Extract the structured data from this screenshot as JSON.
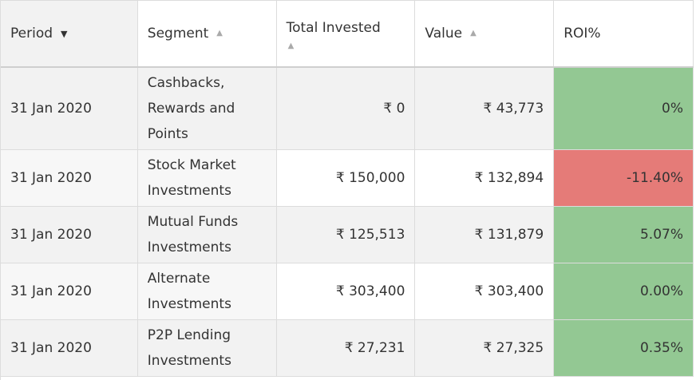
{
  "colors": {
    "positive": "#93c893",
    "negative": "#e57b78",
    "header_sorted_bg": "#f2f2f2"
  },
  "header": {
    "period": "Period",
    "segment": "Segment",
    "total_invested": "Total Invested",
    "value": "Value",
    "roi": "ROI%",
    "icons": {
      "period_sort": "triangle-down",
      "segment_sort": "triangle-up",
      "total_invested_sort": "triangle-up",
      "value_sort": "triangle-up"
    }
  },
  "rows": [
    {
      "period": "31 Jan 2020",
      "segment": "Cashbacks, Rewards and Points",
      "total_invested": "₹ 0",
      "value": "₹ 43,773",
      "roi": "0%",
      "roi_status": "positive"
    },
    {
      "period": "31 Jan 2020",
      "segment": "Stock Market Investments",
      "total_invested": "₹ 150,000",
      "value": "₹ 132,894",
      "roi": "-11.40%",
      "roi_status": "negative"
    },
    {
      "period": "31 Jan 2020",
      "segment": "Mutual Funds Investments",
      "total_invested": "₹ 125,513",
      "value": "₹ 131,879",
      "roi": "5.07%",
      "roi_status": "positive"
    },
    {
      "period": "31 Jan 2020",
      "segment": "Alternate Investments",
      "total_invested": "₹ 303,400",
      "value": "₹ 303,400",
      "roi": "0.00%",
      "roi_status": "positive"
    },
    {
      "period": "31 Jan 2020",
      "segment": "P2P Lending Investments",
      "total_invested": "₹ 27,231",
      "value": "₹ 27,325",
      "roi": "0.35%",
      "roi_status": "positive"
    }
  ]
}
